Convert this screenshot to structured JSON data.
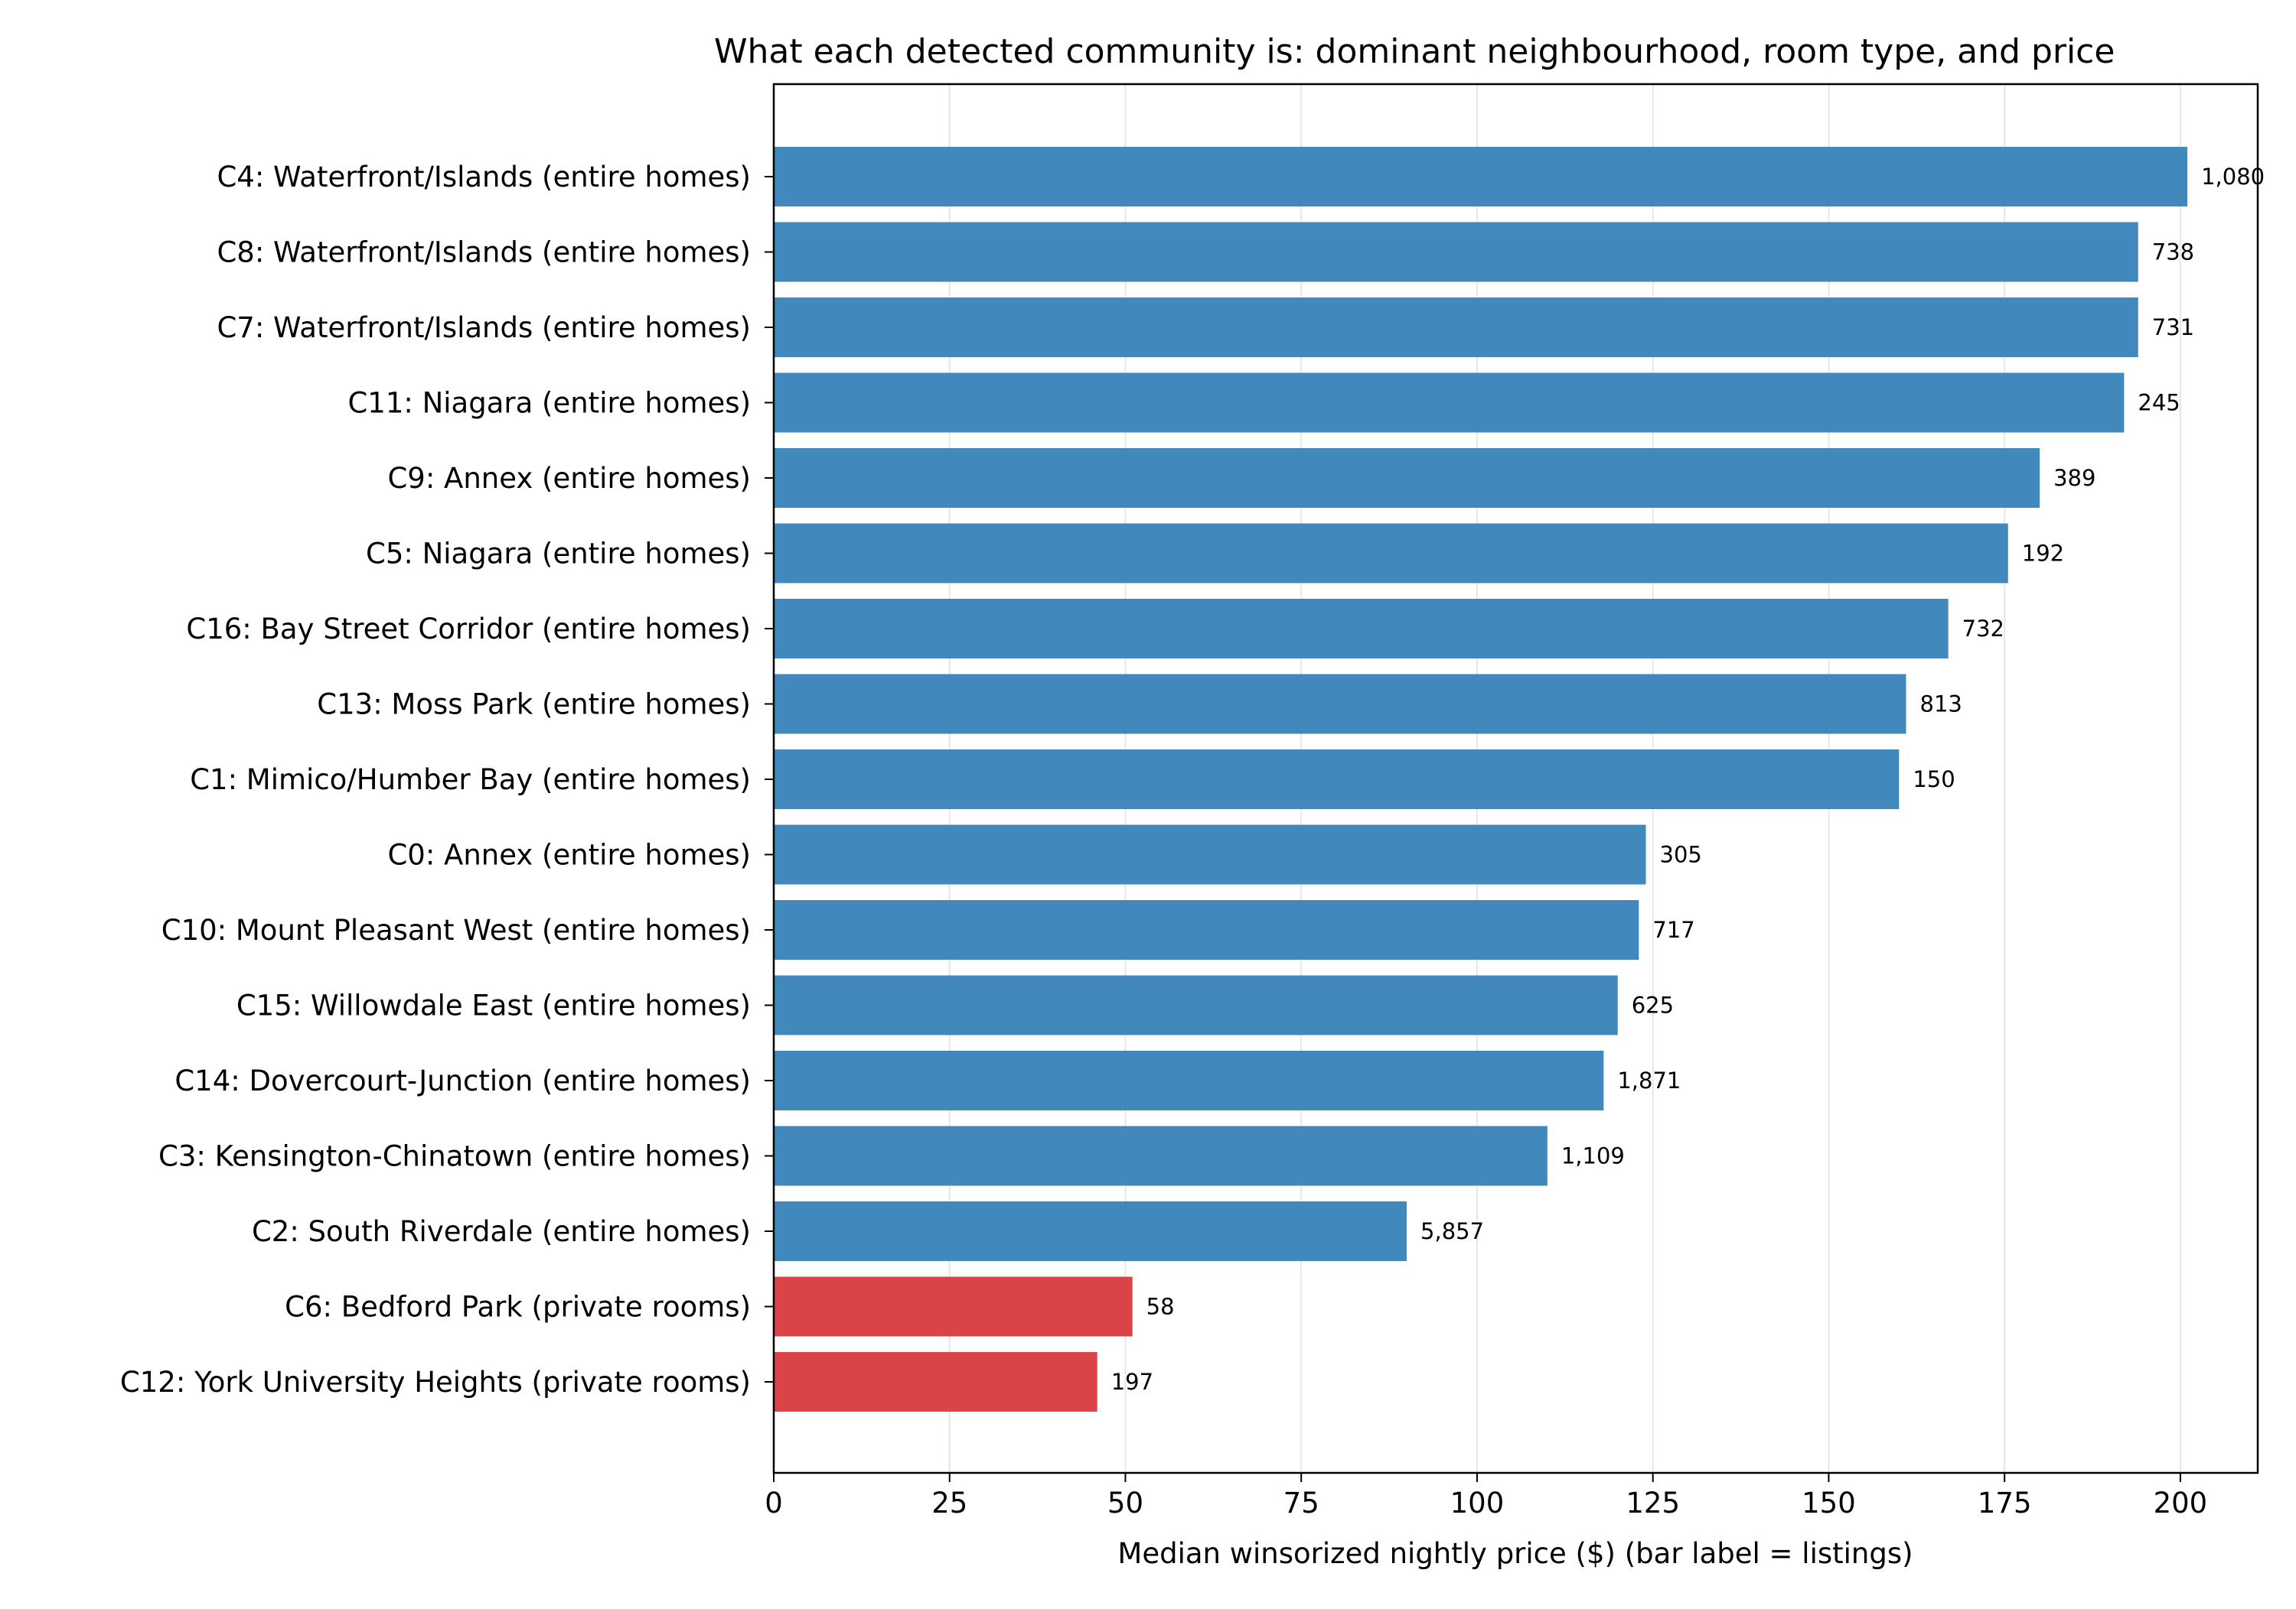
{
  "chart_data": {
    "type": "bar",
    "orientation": "horizontal",
    "title": "What each detected community is: dominant neighbourhood, room type, and price",
    "xlabel": "Median winsorized nightly price ($)   (bar label = listings)",
    "ylabel": "",
    "xlim": [
      0,
      211
    ],
    "xticks": [
      0,
      25,
      50,
      75,
      100,
      125,
      150,
      175,
      200
    ],
    "grid": "vertical",
    "colors": {
      "entire homes": "#4189bd",
      "private rooms": "#db4446",
      "grid": "#e6e6e6",
      "axes": "#000000"
    },
    "categories": [
      "C4: Waterfront/Islands (entire homes)",
      "C8: Waterfront/Islands (entire homes)",
      "C7: Waterfront/Islands (entire homes)",
      "C11: Niagara (entire homes)",
      "C9: Annex (entire homes)",
      "C5: Niagara (entire homes)",
      "C16: Bay Street Corridor (entire homes)",
      "C13: Moss Park (entire homes)",
      "C1: Mimico/Humber Bay (entire homes)",
      "C0: Annex (entire homes)",
      "C10: Mount Pleasant West (entire homes)",
      "C15: Willowdale East (entire homes)",
      "C14: Dovercourt-Junction (entire homes)",
      "C3: Kensington-Chinatown (entire homes)",
      "C2: South Riverdale (entire homes)",
      "C6: Bedford Park (private rooms)",
      "C12: York University Heights (private rooms)"
    ],
    "values": [
      201,
      194,
      194,
      192,
      180,
      175.5,
      167,
      161,
      160,
      124,
      123,
      120,
      118,
      110,
      90,
      51,
      46
    ],
    "bar_labels": [
      "1,080",
      "738",
      "731",
      "245",
      "389",
      "192",
      "732",
      "813",
      "150",
      "305",
      "717",
      "625",
      "1,871",
      "1,109",
      "5,857",
      "58",
      "197"
    ],
    "room_types": [
      "entire homes",
      "entire homes",
      "entire homes",
      "entire homes",
      "entire homes",
      "entire homes",
      "entire homes",
      "entire homes",
      "entire homes",
      "entire homes",
      "entire homes",
      "entire homes",
      "entire homes",
      "entire homes",
      "entire homes",
      "private rooms",
      "private rooms"
    ]
  }
}
